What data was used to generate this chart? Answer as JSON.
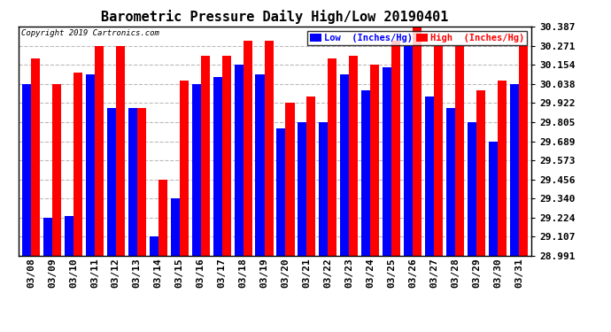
{
  "title": "Barometric Pressure Daily High/Low 20190401",
  "copyright": "Copyright 2019 Cartronics.com",
  "legend_low": "Low  (Inches/Hg)",
  "legend_high": "High  (Inches/Hg)",
  "dates": [
    "03/08",
    "03/09",
    "03/10",
    "03/11",
    "03/12",
    "03/13",
    "03/14",
    "03/15",
    "03/16",
    "03/17",
    "03/18",
    "03/19",
    "03/20",
    "03/21",
    "03/22",
    "03/23",
    "03/24",
    "03/25",
    "03/26",
    "03/27",
    "03/28",
    "03/29",
    "03/30",
    "03/31"
  ],
  "low": [
    30.038,
    29.224,
    29.231,
    30.096,
    29.893,
    29.893,
    29.107,
    29.34,
    30.038,
    30.08,
    30.154,
    30.096,
    29.77,
    29.805,
    29.805,
    30.096,
    30.0,
    30.141,
    30.271,
    29.96,
    29.893,
    29.805,
    29.689,
    30.038
  ],
  "high": [
    30.196,
    30.038,
    30.108,
    30.271,
    30.271,
    29.893,
    29.456,
    30.06,
    30.213,
    30.213,
    30.3,
    30.3,
    29.922,
    29.96,
    30.196,
    30.213,
    30.154,
    30.3,
    30.387,
    30.271,
    30.271,
    30.0,
    30.06,
    30.271
  ],
  "ylim_min": 28.991,
  "ylim_max": 30.387,
  "yticks": [
    28.991,
    29.107,
    29.224,
    29.34,
    29.456,
    29.573,
    29.689,
    29.805,
    29.922,
    30.038,
    30.154,
    30.271,
    30.387
  ],
  "bar_color_low": "#0000ff",
  "bar_color_high": "#ff0000",
  "bg_color": "#ffffff",
  "plot_bg": "#ffffff",
  "grid_color": "#bbbbbb",
  "title_fontsize": 11,
  "tick_fontsize": 8,
  "bar_width": 0.42
}
